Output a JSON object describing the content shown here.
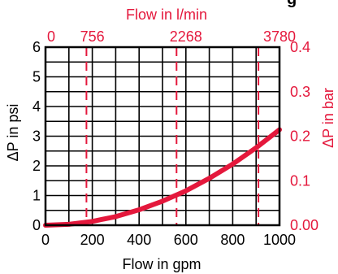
{
  "colors": {
    "accent": "#e4183c",
    "axis": "#000000",
    "background": "#ffffff"
  },
  "chart_data": {
    "type": "line",
    "title_partial": "g",
    "x": {
      "label": "Flow in gpm",
      "ticks": [
        0,
        200,
        400,
        600,
        800,
        1000
      ],
      "range": [
        0,
        1000
      ]
    },
    "y_left": {
      "label": "ΔP in psi",
      "ticks": [
        0,
        1,
        2,
        3,
        4,
        5,
        6
      ],
      "range": [
        0,
        6
      ]
    },
    "x_top": {
      "label": "Flow in l/min",
      "tick_labels": [
        "0",
        "756",
        "2268",
        "3780"
      ],
      "tick_gpm_positions": [
        0,
        200,
        600,
        1000
      ],
      "reference_lines_gpm": [
        175,
        560,
        910
      ]
    },
    "y_right": {
      "label": "ΔP in bar",
      "tick_labels": [
        "0.00",
        "0.1",
        "0.2",
        "0.3",
        "0.4"
      ]
    },
    "series": [
      {
        "x": [
          0,
          100,
          200,
          300,
          400,
          500,
          600,
          700,
          800,
          900,
          1000
        ],
        "y": [
          0,
          0.03,
          0.13,
          0.29,
          0.52,
          0.81,
          1.16,
          1.58,
          2.06,
          2.61,
          3.22
        ]
      }
    ],
    "grid": true
  }
}
